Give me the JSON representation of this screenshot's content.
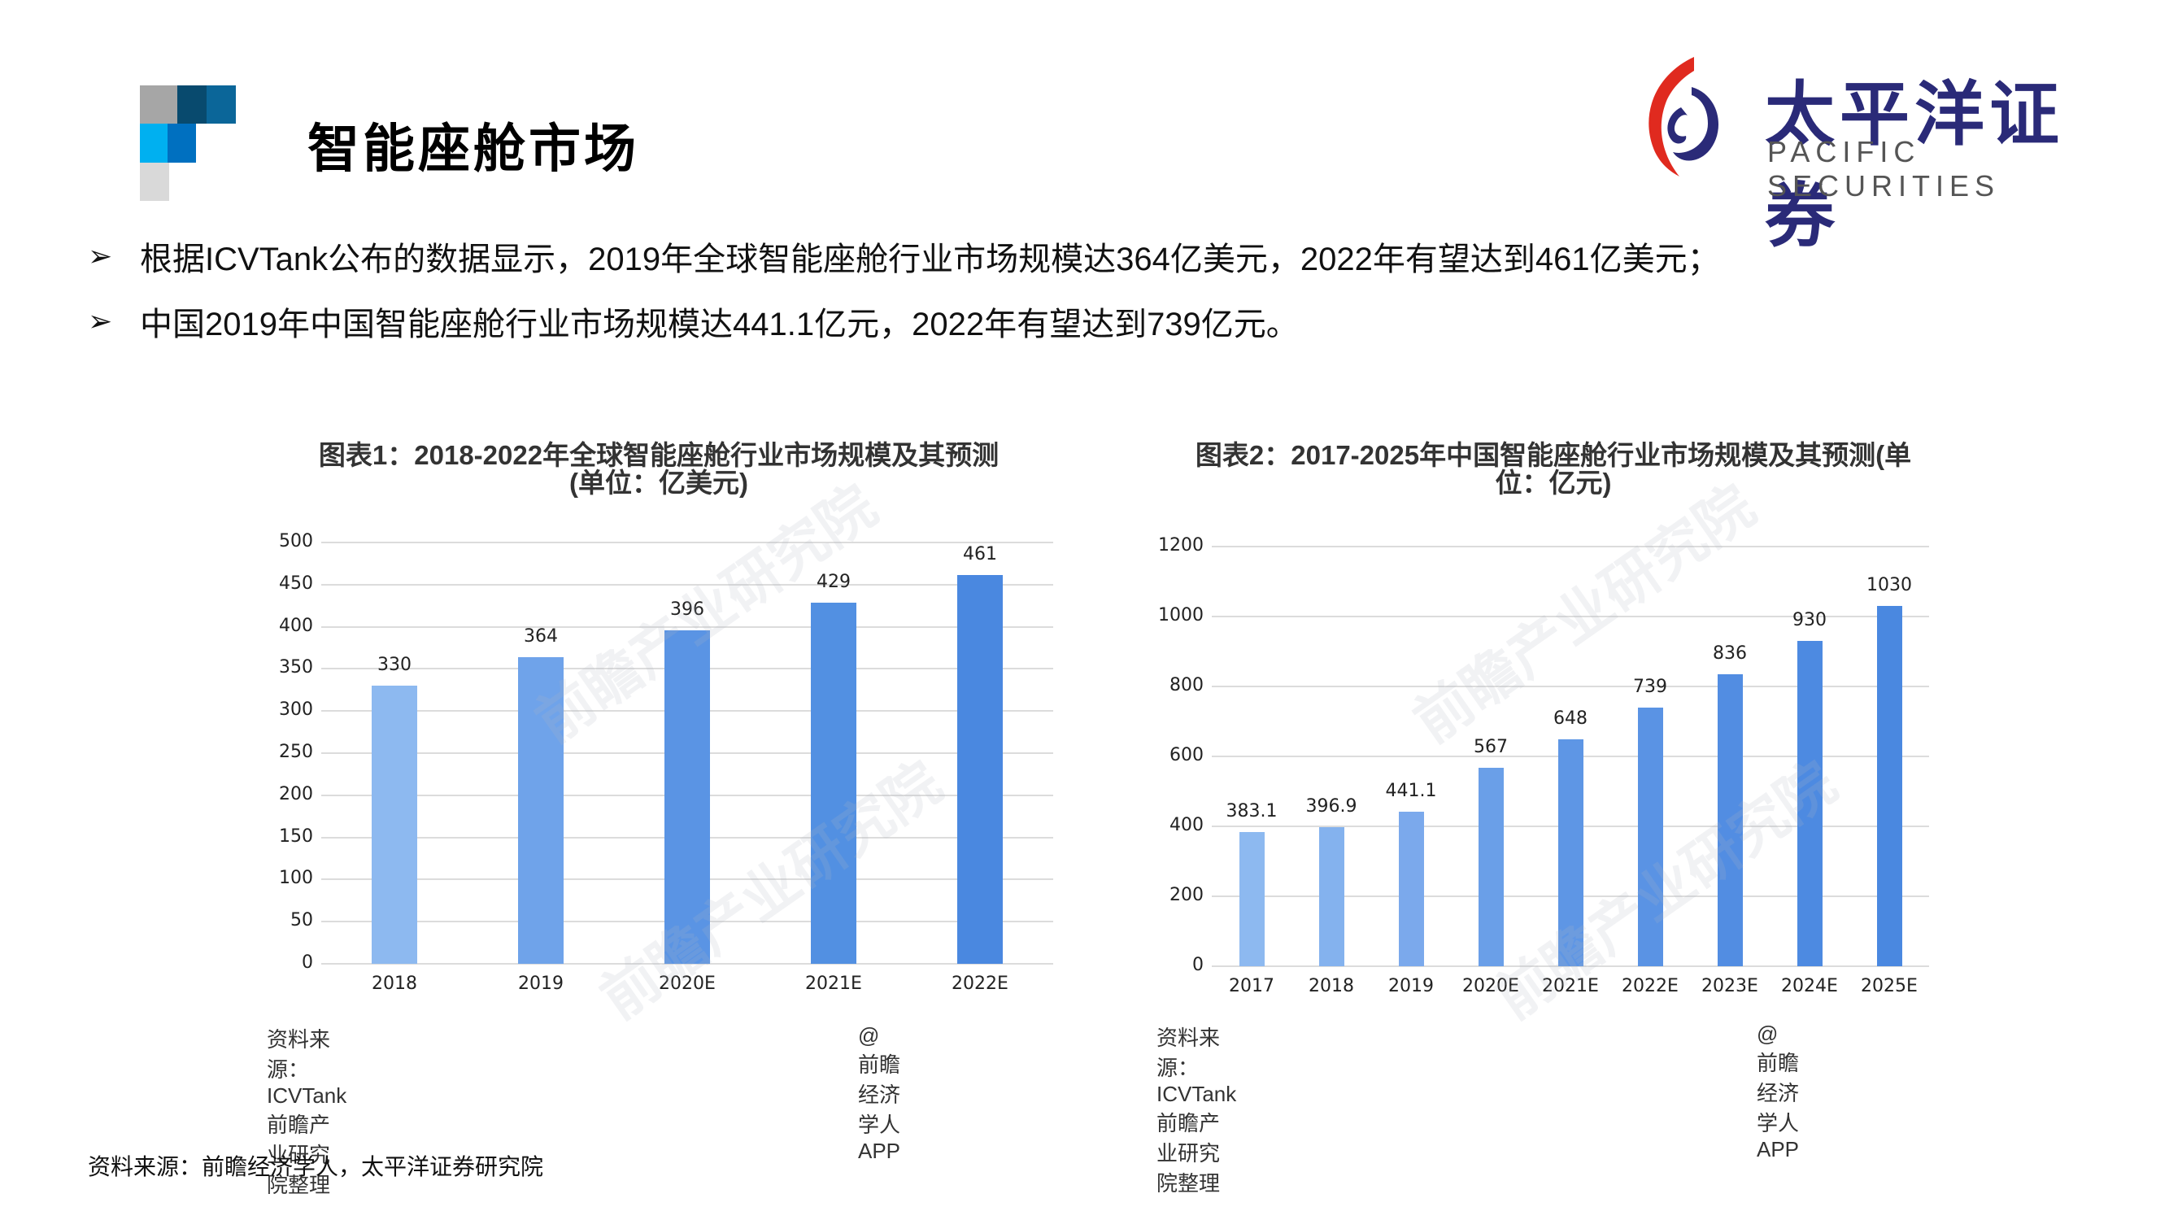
{
  "header": {
    "title": "智能座舱市场",
    "deco_colors": [
      "#a6a6a6",
      "#084a6e",
      "#0b6699",
      "#00b0f0",
      "#0070c0",
      "#d9d9d9"
    ]
  },
  "logo": {
    "name_cn": "太平洋证券",
    "name_en": "PACIFIC SECURITIES",
    "colors": {
      "red": "#e02a1f",
      "navy": "#2a2a78"
    }
  },
  "bullets": [
    {
      "icon": "arrowhead-bullet-icon",
      "text": "根据ICVTank公布的数据显示，2019年全球智能座舱行业市场规模达364亿美元，2022年有望达到461亿美元；"
    },
    {
      "icon": "arrowhead-bullet-icon",
      "text": "中国2019年中国智能座舱行业市场规模达441.1亿元，2022年有望达到739亿元。"
    }
  ],
  "charts": [
    {
      "title_line1": "图表1：2018-2022年全球智能座舱行业市场规模及其预测",
      "title_line2": "(单位：亿美元)",
      "source": "资料来源：ICVTank 前瞻产业研究院整理",
      "credit": "@前瞻经济学人APP",
      "watermark": "前瞻产业研究院"
    },
    {
      "title_line1": "图表2：2017-2025年中国智能座舱行业市场规模及其预测(单",
      "title_line2": "位：亿元)",
      "source": "资料来源：ICVTank 前瞻产业研究院整理",
      "credit": "@前瞻经济学人APP",
      "watermark": "前瞻产业研究院"
    }
  ],
  "chart_data": [
    {
      "type": "bar",
      "title": "图表1：2018-2022年全球智能座舱行业市场规模及其预测(单位：亿美元)",
      "xlabel": "",
      "ylabel": "亿美元",
      "categories": [
        "2018",
        "2019",
        "2020E",
        "2021E",
        "2022E"
      ],
      "values": [
        330,
        364,
        396,
        429,
        461
      ],
      "yticks": [
        0,
        50,
        100,
        150,
        200,
        250,
        300,
        350,
        400,
        450,
        500
      ],
      "ylim": [
        0,
        500
      ],
      "grid": true,
      "legend": "none",
      "bar_colors": [
        "#8db9f0",
        "#6fa3ea",
        "#5a94e4",
        "#5290e2",
        "#4a88e0"
      ]
    },
    {
      "type": "bar",
      "title": "图表2：2017-2025年中国智能座舱行业市场规模及其预测(单位：亿元)",
      "xlabel": "",
      "ylabel": "亿元",
      "categories": [
        "2017",
        "2018",
        "2019",
        "2020E",
        "2021E",
        "2022E",
        "2023E",
        "2024E",
        "2025E"
      ],
      "values": [
        383.1,
        396.9,
        441.1,
        567,
        648,
        739,
        836,
        930,
        1030
      ],
      "labels": [
        "383.1",
        "396.9",
        "441.1",
        "567",
        "648",
        "739",
        "836",
        "930",
        "1030"
      ],
      "yticks": [
        0,
        200,
        400,
        600,
        800,
        1000,
        1200
      ],
      "ylim": [
        0,
        1200
      ],
      "grid": true,
      "legend": "none",
      "bar_colors": [
        "#8db9f0",
        "#84b2ee",
        "#7ba9ec",
        "#6a9fe8",
        "#5e96e5",
        "#5a93e4",
        "#528de2",
        "#4d8ae1",
        "#4a88e0"
      ]
    }
  ],
  "footer": {
    "source": "资料来源：前瞻经济学人，太平洋证券研究院"
  }
}
